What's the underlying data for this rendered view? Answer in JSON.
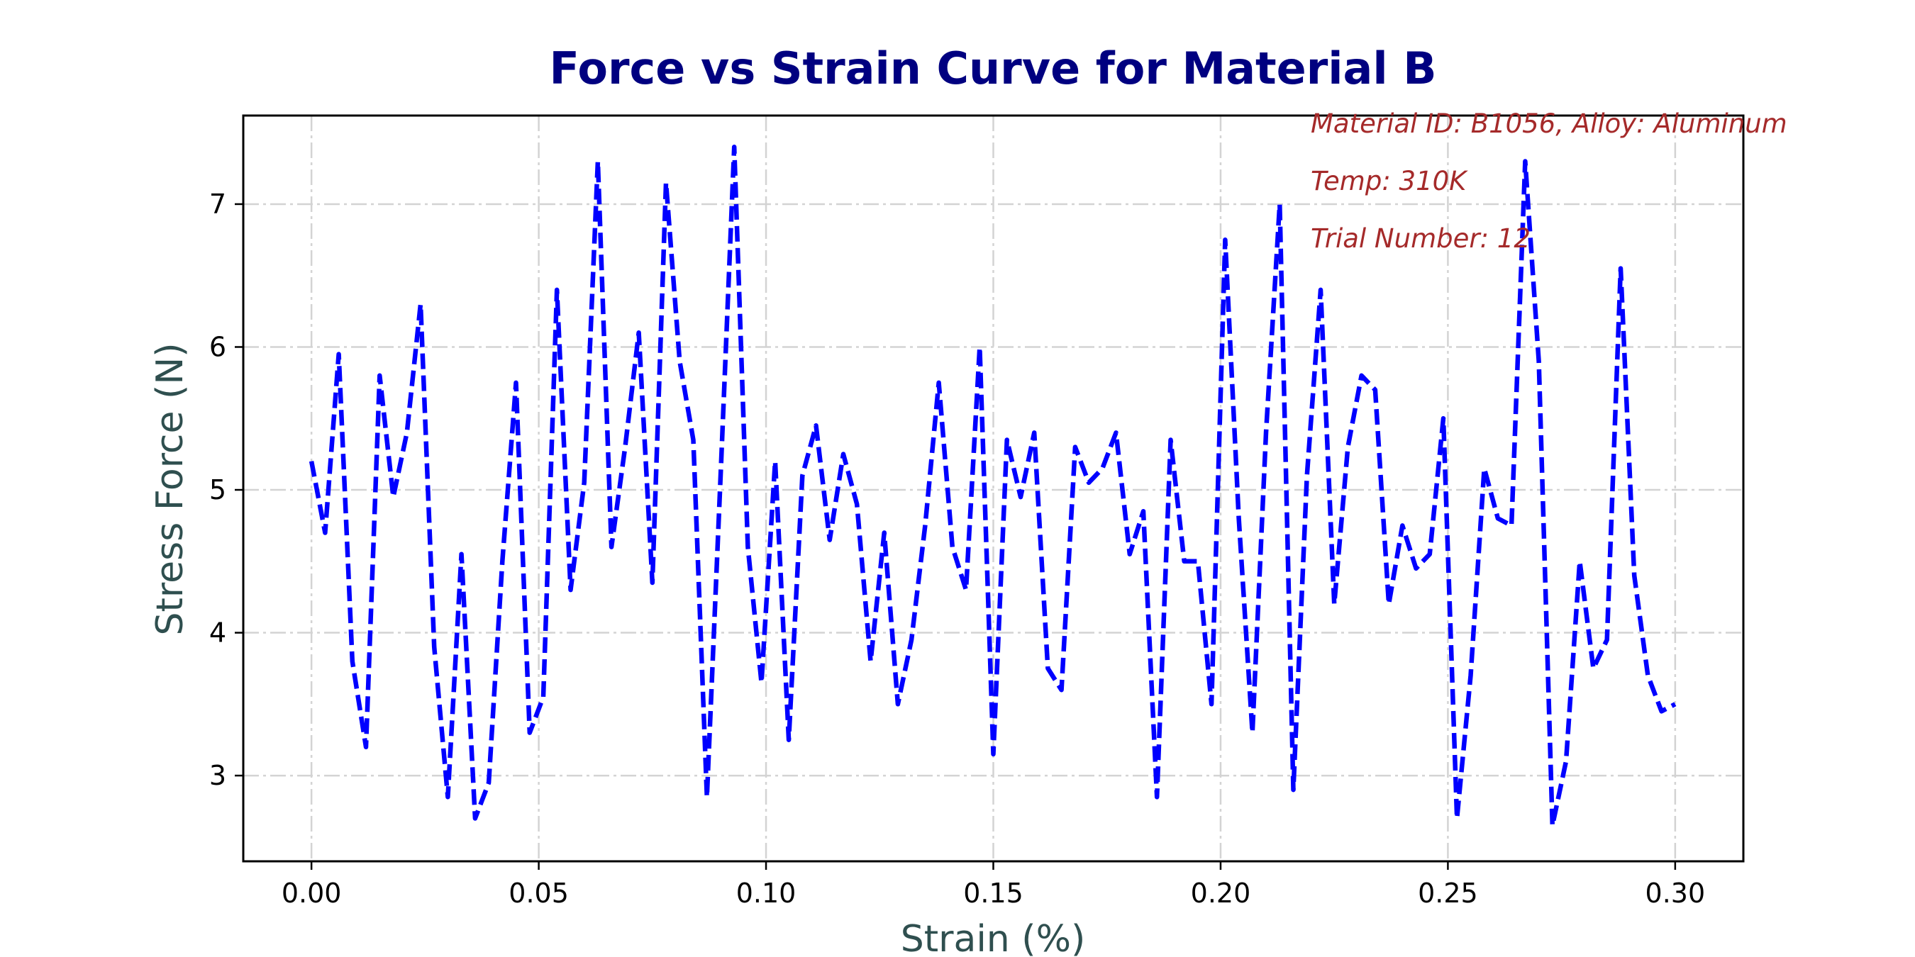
{
  "chart_data": {
    "type": "line",
    "title": "Force vs Strain Curve for Material B",
    "xlabel": "Strain (%)",
    "ylabel": "Stress Force (N)",
    "xlim": [
      -0.015,
      0.315
    ],
    "ylim": [
      2.4,
      7.62
    ],
    "grid": true,
    "x_ticks": [
      0.0,
      0.05,
      0.1,
      0.15,
      0.2,
      0.25,
      0.3
    ],
    "x_tick_labels": [
      "0.00",
      "0.05",
      "0.10",
      "0.15",
      "0.20",
      "0.25",
      "0.30"
    ],
    "y_ticks": [
      3,
      4,
      5,
      6,
      7
    ],
    "y_tick_labels": [
      "3",
      "4",
      "5",
      "6",
      "7"
    ],
    "annotations": [
      "Material ID: B1056, Alloy: Aluminum",
      "Temp: 310K",
      "Trial Number: 12"
    ],
    "series": [
      {
        "color": "#0000ff",
        "line_style": "dashed",
        "x": [
          0.0,
          0.003,
          0.006,
          0.009,
          0.012,
          0.015,
          0.018,
          0.021,
          0.024,
          0.027,
          0.03,
          0.033,
          0.036,
          0.039,
          0.042,
          0.045,
          0.048,
          0.051,
          0.054,
          0.057,
          0.06,
          0.063,
          0.066,
          0.069,
          0.072,
          0.075,
          0.078,
          0.081,
          0.084,
          0.087,
          0.09,
          0.093,
          0.096,
          0.099,
          0.102,
          0.105,
          0.108,
          0.111,
          0.114,
          0.117,
          0.12,
          0.123,
          0.126,
          0.129,
          0.132,
          0.135,
          0.138,
          0.141,
          0.144,
          0.147,
          0.15,
          0.153,
          0.156,
          0.159,
          0.162,
          0.165,
          0.168,
          0.171,
          0.174,
          0.177,
          0.18,
          0.183,
          0.186,
          0.189,
          0.192,
          0.195,
          0.198,
          0.201,
          0.204,
          0.207,
          0.21,
          0.213,
          0.216,
          0.219,
          0.222,
          0.225,
          0.228,
          0.231,
          0.234,
          0.237,
          0.24,
          0.243,
          0.246,
          0.249,
          0.252,
          0.255,
          0.258,
          0.261,
          0.264,
          0.267,
          0.27,
          0.273,
          0.276,
          0.279,
          0.282,
          0.285,
          0.288,
          0.291,
          0.294,
          0.297,
          0.3
        ],
        "y": [
          5.2,
          4.7,
          5.95,
          3.8,
          3.2,
          5.8,
          4.95,
          5.4,
          6.3,
          3.9,
          2.85,
          4.55,
          2.7,
          2.95,
          4.5,
          5.75,
          3.3,
          3.55,
          6.4,
          4.3,
          5.05,
          7.3,
          4.6,
          5.3,
          6.1,
          4.35,
          7.15,
          5.9,
          5.35,
          2.85,
          5.1,
          7.4,
          4.6,
          3.65,
          5.2,
          3.25,
          5.1,
          5.45,
          4.65,
          5.25,
          4.9,
          3.8,
          4.7,
          3.5,
          3.95,
          4.75,
          5.75,
          4.6,
          4.3,
          6.0,
          3.15,
          5.35,
          4.95,
          5.4,
          3.75,
          3.6,
          5.3,
          5.05,
          5.15,
          5.4,
          4.55,
          4.85,
          2.85,
          5.35,
          4.5,
          4.5,
          3.5,
          6.75,
          4.8,
          3.3,
          5.4,
          7.0,
          2.9,
          5.1,
          6.4,
          4.2,
          5.3,
          5.8,
          5.7,
          4.2,
          4.75,
          4.45,
          4.55,
          5.5,
          2.7,
          3.7,
          5.15,
          4.8,
          4.75,
          7.3,
          5.9,
          2.65,
          3.1,
          4.5,
          3.75,
          3.95,
          6.55,
          4.4,
          3.7,
          3.45,
          3.5
        ]
      }
    ]
  }
}
